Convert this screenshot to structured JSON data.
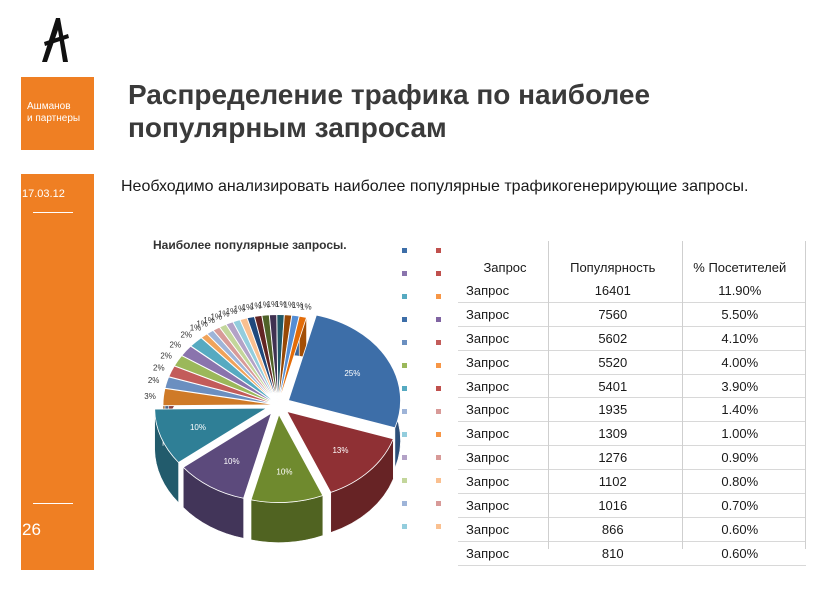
{
  "brand": {
    "company": "Ашманов\nи партнеры",
    "date": "17.03.12",
    "page_number": "26"
  },
  "slide": {
    "title": "Распределение трафика по наиболее популярным запросам",
    "body": "Необходимо анализировать наиболее популярные трафикогенерирующие запросы."
  },
  "chart_data": {
    "type": "pie",
    "title": "Наиболее популярные запросы.",
    "slices": [
      {
        "label": "25%",
        "value": 25,
        "color": "#3d6ea8"
      },
      {
        "label": "13%",
        "value": 13,
        "color": "#8f3034"
      },
      {
        "label": "10%",
        "value": 10,
        "color": "#6f8a2e"
      },
      {
        "label": "10%",
        "value": 10,
        "color": "#5c4a7c"
      },
      {
        "label": "10%",
        "value": 10,
        "color": "#2f7f96"
      },
      {
        "label": "3%",
        "value": 3,
        "color": "#cf7a27"
      },
      {
        "label": "2%",
        "value": 2,
        "color": "#6b8fc0"
      },
      {
        "label": "2%",
        "value": 2,
        "color": "#c35c5a"
      },
      {
        "label": "2%",
        "value": 2,
        "color": "#9bb85a"
      },
      {
        "label": "2%",
        "value": 2,
        "color": "#8a74ad"
      },
      {
        "label": "2%",
        "value": 2,
        "color": "#56aac1"
      },
      {
        "label": "1%",
        "value": 1,
        "color": "#f0a35a"
      },
      {
        "label": "1%",
        "value": 1,
        "color": "#9eb4d8"
      },
      {
        "label": "1%",
        "value": 1,
        "color": "#d89a98"
      },
      {
        "label": "1%",
        "value": 1,
        "color": "#c3d69b"
      },
      {
        "label": "1%",
        "value": 1,
        "color": "#b3a2c7"
      },
      {
        "label": "1%",
        "value": 1,
        "color": "#93cddd"
      },
      {
        "label": "1%",
        "value": 1,
        "color": "#fac090"
      },
      {
        "label": "1%",
        "value": 1,
        "color": "#1f497d"
      },
      {
        "label": "1%",
        "value": 1,
        "color": "#632523"
      },
      {
        "label": "1%",
        "value": 1,
        "color": "#4f6228"
      },
      {
        "label": "1%",
        "value": 1,
        "color": "#3f3151"
      },
      {
        "label": "1%",
        "value": 1,
        "color": "#205867"
      },
      {
        "label": "1%",
        "value": 1,
        "color": "#974806"
      },
      {
        "label": "1%",
        "value": 1,
        "color": "#548dd4"
      },
      {
        "label": "1%",
        "value": 1,
        "color": "#e36c09"
      }
    ]
  },
  "table": {
    "headers": [
      "Запрос",
      "Популярность",
      "% Посетителей"
    ],
    "rows": [
      {
        "query": "Запрос",
        "popularity": "16401",
        "visitors": "11.90%"
      },
      {
        "query": "Запрос",
        "popularity": "7560",
        "visitors": "5.50%"
      },
      {
        "query": "Запрос",
        "popularity": "5602",
        "visitors": "4.10%"
      },
      {
        "query": "Запрос",
        "popularity": "5520",
        "visitors": "4.00%"
      },
      {
        "query": "Запрос",
        "popularity": "5401",
        "visitors": "3.90%"
      },
      {
        "query": "Запрос",
        "popularity": "1935",
        "visitors": "1.40%"
      },
      {
        "query": "Запрос",
        "popularity": "1309",
        "visitors": "1.00%"
      },
      {
        "query": "Запрос",
        "popularity": "1276",
        "visitors": "0.90%"
      },
      {
        "query": "Запрос",
        "popularity": "1102",
        "visitors": "0.80%"
      },
      {
        "query": "Запрос",
        "popularity": "1016",
        "visitors": "0.70%"
      },
      {
        "query": "Запрос",
        "popularity": "866",
        "visitors": "0.60%"
      },
      {
        "query": "Запрос",
        "popularity": "810",
        "visitors": "0.60%"
      }
    ]
  },
  "legend": {
    "colors_a": [
      "#3d6ea8",
      "#8a74ad",
      "#56aac1",
      "#3d6ea8",
      "#6b8fc0",
      "#9bb85a",
      "#56aac1",
      "#9eb4d8",
      "#93cddd",
      "#b3a2c7",
      "#c3d69b",
      "#9eb4d8",
      "#93cddd"
    ],
    "colors_b": [
      "#c0504d",
      "#c0504d",
      "#f79646",
      "#8064a2",
      "#c35c5a",
      "#f79646",
      "#c0504d",
      "#d89a98",
      "#f79646",
      "#d89a98",
      "#fac090",
      "#d89a98",
      "#fac090"
    ]
  }
}
